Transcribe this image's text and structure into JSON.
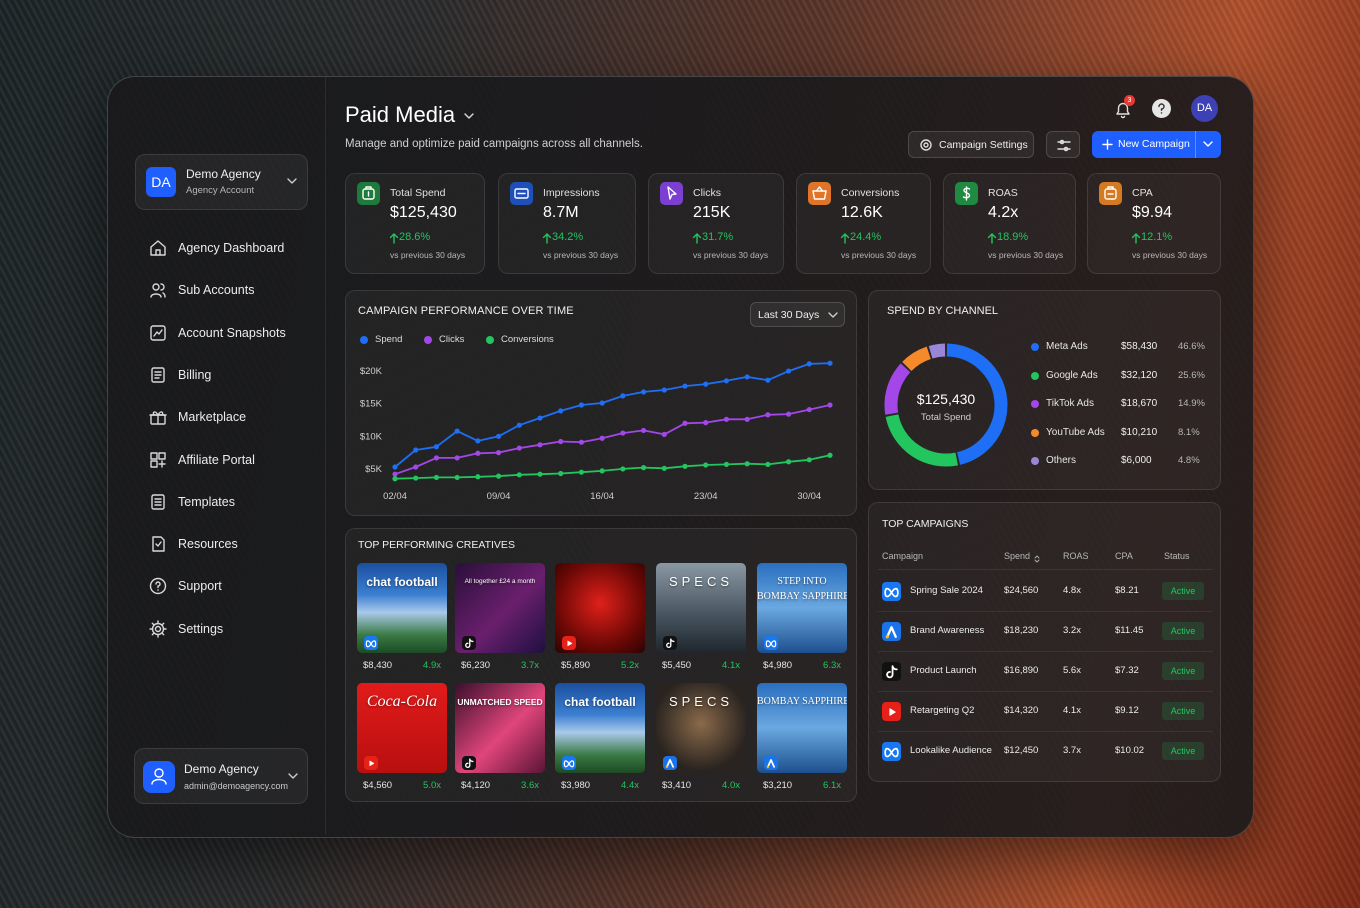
{
  "sidebar": {
    "account": {
      "initials": "DA",
      "name": "Demo Agency",
      "type": "Agency Account"
    },
    "nav": [
      "Agency Dashboard",
      "Sub Accounts",
      "Account Snapshots",
      "Billing",
      "Marketplace",
      "Affiliate Portal",
      "Templates",
      "Resources",
      "Support",
      "Settings"
    ],
    "user": {
      "name": "Demo Agency",
      "email": "admin@demoagency.com"
    }
  },
  "header": {
    "title": "Paid Media",
    "subtitle": "Manage and optimize paid campaigns across all channels.",
    "notifications": "3",
    "avatar": "DA",
    "buttons": {
      "settings": "Campaign Settings",
      "new": "New Campaign"
    }
  },
  "kpis": [
    {
      "label": "Total Spend",
      "value": "$125,430",
      "change": "28.6%",
      "note": "vs previous 30 days",
      "color": "#1e7b3c"
    },
    {
      "label": "Impressions",
      "value": "8.7M",
      "change": "34.2%",
      "note": "vs previous 30 days",
      "color": "#1f4fb8"
    },
    {
      "label": "Clicks",
      "value": "215K",
      "change": "31.7%",
      "note": "vs previous 30 days",
      "color": "#7b3fd1"
    },
    {
      "label": "Conversions",
      "value": "12.6K",
      "change": "24.4%",
      "note": "vs previous 30 days",
      "color": "#e0752a"
    },
    {
      "label": "ROAS",
      "value": "4.2x",
      "change": "18.9%",
      "note": "vs previous 30 days",
      "color": "#1e8a42"
    },
    {
      "label": "CPA",
      "value": "$9.94",
      "change": "12.1%",
      "note": "vs previous 30 days",
      "color": "#d67a22"
    }
  ],
  "performance": {
    "title": "CAMPAIGN PERFORMANCE OVER TIME",
    "range": "Last 30 Days",
    "chart": {
      "type": "line",
      "categories": [
        "02/04",
        null,
        null,
        null,
        null,
        "09/04",
        null,
        null,
        null,
        null,
        "16/04",
        null,
        null,
        null,
        null,
        "23/04",
        null,
        null,
        null,
        null,
        "30/04",
        null
      ],
      "series": [
        {
          "name": "Spend",
          "color": "#1e6ff5",
          "values": [
            5300,
            7900,
            8400,
            10800,
            9300,
            10000,
            11700,
            12800,
            13900,
            14800,
            15100,
            16200,
            16800,
            17100,
            17700,
            18000,
            18500,
            19100,
            18600,
            20000,
            21100,
            21200
          ]
        },
        {
          "name": "Clicks",
          "color": "#a347e8",
          "values": [
            4200,
            5300,
            6700,
            6700,
            7400,
            7500,
            8200,
            8700,
            9200,
            9100,
            9700,
            10500,
            10900,
            10300,
            12000,
            12100,
            12600,
            12600,
            13300,
            13400,
            14100,
            14800
          ]
        },
        {
          "name": "Conversions",
          "color": "#22c55e",
          "values": [
            3500,
            3600,
            3700,
            3700,
            3800,
            3900,
            4100,
            4200,
            4300,
            4500,
            4700,
            5000,
            5200,
            5100,
            5400,
            5600,
            5700,
            5800,
            5700,
            6100,
            6400,
            7100
          ]
        }
      ],
      "ylim": [
        3000,
        22000
      ],
      "yticks": [
        {
          "value": 5000,
          "label": "$5K"
        },
        {
          "value": 10000,
          "label": "$10K"
        },
        {
          "value": 15000,
          "label": "$15K"
        },
        {
          "value": 20000,
          "label": "$20K"
        }
      ]
    }
  },
  "channels": {
    "title": "SPEND BY CHANNEL",
    "total": "$125,430",
    "total_label": "Total Spend",
    "chart": {
      "type": "pie",
      "categories": [
        "Meta Ads",
        "Google Ads",
        "TikTok Ads",
        "YouTube Ads",
        "Others"
      ],
      "amounts": [
        "$58,430",
        "$32,120",
        "$18,670",
        "$10,210",
        "$6,000"
      ],
      "values": [
        46.6,
        25.6,
        14.9,
        8.1,
        4.8
      ],
      "value_labels": [
        "46.6%",
        "25.6%",
        "14.9%",
        "8.1%",
        "4.8%"
      ],
      "colors": [
        "#1e6ff5",
        "#22c55e",
        "#a347e8",
        "#f58a2a",
        "#9a86d6"
      ]
    }
  },
  "creatives": {
    "title": "TOP PERFORMING CREATIVES",
    "items": [
      {
        "text": [
          "chat football"
        ],
        "spend": "$8,430",
        "roas": "4.9x",
        "platform": "meta",
        "theme": "stadium"
      },
      {
        "text": [
          "All together £24 a month"
        ],
        "spend": "$6,230",
        "roas": "3.7x",
        "platform": "tiktok",
        "theme": "sky"
      },
      {
        "spend": "$5,890",
        "roas": "5.2x",
        "platform": "youtube",
        "theme": "coke"
      },
      {
        "text": [
          "SPECS"
        ],
        "spend": "$5,450",
        "roas": "4.1x",
        "platform": "tiktok",
        "theme": "specs"
      },
      {
        "text": [
          "STEP INTO",
          "BOMBAY SAPPHIRE"
        ],
        "spend": "$4,980",
        "roas": "6.3x",
        "platform": "meta",
        "theme": "gin"
      },
      {
        "text": [
          "Coca-Cola"
        ],
        "spend": "$4,560",
        "roas": "5.0x",
        "platform": "youtube",
        "theme": "cola"
      },
      {
        "text": [
          "UNMATCHED SPEED"
        ],
        "spend": "$4,120",
        "roas": "3.6x",
        "platform": "tiktok",
        "theme": "shoe"
      },
      {
        "text": [
          "chat football"
        ],
        "spend": "$3,980",
        "roas": "4.4x",
        "platform": "meta",
        "theme": "stadium"
      },
      {
        "text": [
          "SPECS"
        ],
        "spend": "$3,410",
        "roas": "4.0x",
        "platform": "google",
        "theme": "specs2"
      },
      {
        "text": [
          "BOMBAY SAPPHIRE"
        ],
        "spend": "$3,210",
        "roas": "6.1x",
        "platform": "google",
        "theme": "gin"
      }
    ]
  },
  "campaigns": {
    "title": "TOP CAMPAIGNS",
    "columns": [
      "Campaign",
      "Spend",
      "ROAS",
      "CPA",
      "Status"
    ],
    "rows": [
      {
        "platform": "meta",
        "cells": [
          "Spring Sale 2024",
          "$24,560",
          "4.8x",
          "$8.21",
          "Active"
        ]
      },
      {
        "platform": "google",
        "cells": [
          "Brand Awareness",
          "$18,230",
          "3.2x",
          "$11.45",
          "Active"
        ]
      },
      {
        "platform": "tiktok",
        "cells": [
          "Product Launch",
          "$16,890",
          "5.6x",
          "$7.32",
          "Active"
        ]
      },
      {
        "platform": "youtube",
        "cells": [
          "Retargeting Q2",
          "$14,320",
          "4.1x",
          "$9.12",
          "Active"
        ]
      },
      {
        "platform": "meta",
        "cells": [
          "Lookalike Audience",
          "$12,450",
          "3.7x",
          "$10.02",
          "Active"
        ]
      }
    ]
  }
}
